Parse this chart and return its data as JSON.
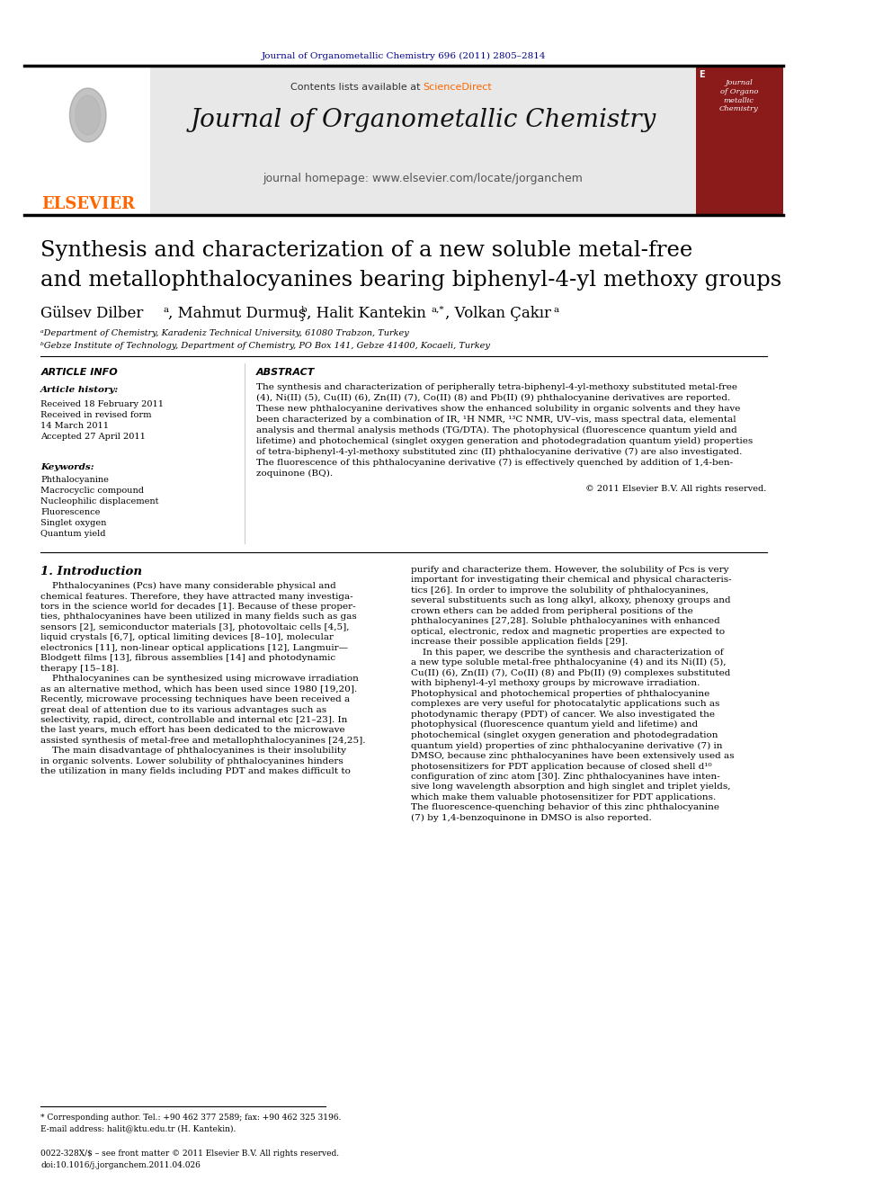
{
  "page_bg": "#ffffff",
  "top_journal_ref": "Journal of Organometallic Chemistry 696 (2011) 2805–2814",
  "top_journal_ref_color": "#00008B",
  "journal_header_bg": "#e8e8e8",
  "journal_name": "Journal of Organometallic Chemistry",
  "journal_homepage": "journal homepage: www.elsevier.com/locate/jorganchem",
  "contents_text": "Contents lists available at ",
  "sciencedirect_text": "ScienceDirect",
  "sciencedirect_color": "#FF6600",
  "elsevier_color": "#FF6600",
  "elsevier_text": "ELSEVIER",
  "paper_title_line1": "Synthesis and characterization of a new soluble metal-free",
  "paper_title_line2": "and metallophthalocyanines bearing biphenyl-4-yl methoxy groups",
  "affil_a": "ᵃDepartment of Chemistry, Karadeniz Technical University, 61080 Trabzon, Turkey",
  "affil_b": "ᵇGebze Institute of Technology, Department of Chemistry, PO Box 141, Gebze 41400, Kocaeli, Turkey",
  "article_info_title": "ARTICLE INFO",
  "article_history_title": "Article history:",
  "received_text": "Received 18 February 2011",
  "revised_text": "Received in revised form",
  "revised_date": "14 March 2011",
  "accepted_text": "Accepted 27 April 2011",
  "keywords_title": "Keywords:",
  "keywords": [
    "Phthalocyanine",
    "Macrocyclic compound",
    "Nucleophilic displacement",
    "Fluorescence",
    "Singlet oxygen",
    "Quantum yield"
  ],
  "abstract_title": "ABSTRACT",
  "copyright_text": "© 2011 Elsevier B.V. All rights reserved.",
  "intro_title": "1. Introduction",
  "footnote_star": "* Corresponding author. Tel.: +90 462 377 2589; fax: +90 462 325 3196.",
  "footnote_email": "E-mail address: halit@ktu.edu.tr (H. Kantekin).",
  "footer_issn": "0022-328X/$ – see front matter © 2011 Elsevier B.V. All rights reserved.",
  "footer_doi": "doi:10.1016/j.jorganchem.2011.04.026",
  "red_cover_bg": "#8B1A1A"
}
